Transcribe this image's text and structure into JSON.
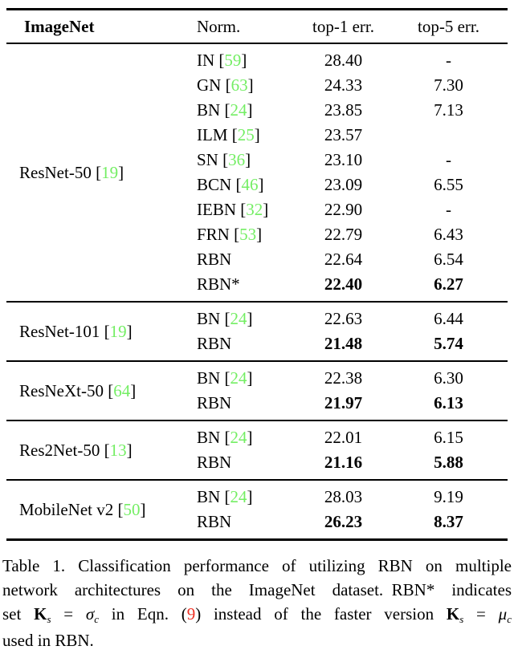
{
  "colors": {
    "citation_green": "#74EE64",
    "eqref_red": "#EF3124",
    "text": "#000000",
    "background": "#FFFFFF"
  },
  "table": {
    "header": {
      "col1": "ImageNet",
      "col2": "Norm.",
      "col3": "top-1 err.",
      "col4": "top-5 err."
    },
    "groups": [
      {
        "arch": "ResNet-50",
        "ref": "19",
        "rows": [
          {
            "norm": "IN",
            "ref": "59",
            "top1": "28.40",
            "top5": "-",
            "bold": false
          },
          {
            "norm": "GN",
            "ref": "63",
            "top1": "24.33",
            "top5": "7.30",
            "bold": false
          },
          {
            "norm": "BN",
            "ref": "24",
            "top1": "23.85",
            "top5": "7.13",
            "bold": false
          },
          {
            "norm": "ILM",
            "ref": "25",
            "top1": "23.57",
            "top5": "",
            "bold": false
          },
          {
            "norm": "SN",
            "ref": "36",
            "top1": "23.10",
            "top5": "-",
            "bold": false
          },
          {
            "norm": "BCN",
            "ref": "46",
            "top1": "23.09",
            "top5": "6.55",
            "bold": false
          },
          {
            "norm": "IEBN",
            "ref": "32",
            "top1": "22.90",
            "top5": "-",
            "bold": false
          },
          {
            "norm": "FRN",
            "ref": "53",
            "top1": "22.79",
            "top5": "6.43",
            "bold": false
          },
          {
            "norm": "RBN",
            "ref": null,
            "top1": "22.64",
            "top5": "6.54",
            "bold": false
          },
          {
            "norm": "RBN*",
            "ref": null,
            "top1": "22.40",
            "top5": "6.27",
            "bold": true
          }
        ]
      },
      {
        "arch": "ResNet-101",
        "ref": "19",
        "rows": [
          {
            "norm": "BN",
            "ref": "24",
            "top1": "22.63",
            "top5": "6.44",
            "bold": false
          },
          {
            "norm": "RBN",
            "ref": null,
            "top1": "21.48",
            "top5": "5.74",
            "bold": true
          }
        ]
      },
      {
        "arch": "ResNeXt-50",
        "ref": "64",
        "rows": [
          {
            "norm": "BN",
            "ref": "24",
            "top1": "22.38",
            "top5": "6.30",
            "bold": false
          },
          {
            "norm": "RBN",
            "ref": null,
            "top1": "21.97",
            "top5": "6.13",
            "bold": true
          }
        ]
      },
      {
        "arch": "Res2Net-50",
        "ref": "13",
        "rows": [
          {
            "norm": "BN",
            "ref": "24",
            "top1": "22.01",
            "top5": "6.15",
            "bold": false
          },
          {
            "norm": "RBN",
            "ref": null,
            "top1": "21.16",
            "top5": "5.88",
            "bold": true
          }
        ]
      },
      {
        "arch": "MobileNet v2",
        "ref": "50",
        "rows": [
          {
            "norm": "BN",
            "ref": "24",
            "top1": "28.03",
            "top5": "9.19",
            "bold": false
          },
          {
            "norm": "RBN",
            "ref": null,
            "top1": "26.23",
            "top5": "8.37",
            "bold": true
          }
        ]
      }
    ]
  },
  "caption": {
    "lines": [
      {
        "justify": true,
        "segments": [
          {
            "t": "Table 1. Classification performance of utilizing RBN on multiple"
          }
        ]
      },
      {
        "justify": true,
        "segments": [
          {
            "t": "network architectures on the ImageNet dataset. RBN* indicates"
          }
        ]
      },
      {
        "justify": true,
        "segments": [
          {
            "t": "set "
          },
          {
            "t": "K",
            "s": "mbold"
          },
          {
            "t": "s",
            "s": "msub"
          },
          {
            "t": " = "
          },
          {
            "t": "σ",
            "s": "mit"
          },
          {
            "t": "c",
            "s": "msub"
          },
          {
            "t": " in Eqn. ("
          },
          {
            "t": "9",
            "s": "red"
          },
          {
            "t": ") instead of the faster version "
          },
          {
            "t": "K",
            "s": "mbold"
          },
          {
            "t": "s",
            "s": "msub"
          },
          {
            "t": " = "
          },
          {
            "t": "μ",
            "s": "mit"
          },
          {
            "t": "c",
            "s": "msub"
          }
        ]
      },
      {
        "justify": false,
        "segments": [
          {
            "t": "used in RBN."
          }
        ]
      }
    ]
  }
}
